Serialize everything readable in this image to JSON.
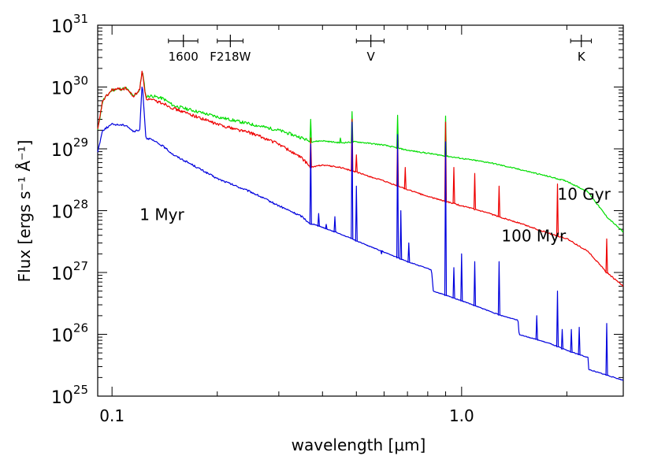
{
  "chart_data": {
    "type": "line",
    "title": "",
    "xlabel": "wavelength [μm]",
    "ylabel": "Flux [ergs s⁻¹ Å⁻¹]",
    "xscale": "log",
    "yscale": "log",
    "xlim": [
      0.091,
      2.9
    ],
    "ylim": [
      1e+25,
      1e+31
    ],
    "x_ticks": [
      {
        "value": 0.1,
        "label": "0.1"
      },
      {
        "value": 1.0,
        "label": "1.0"
      }
    ],
    "y_ticks": [
      {
        "value": 1e+25,
        "base": "10",
        "exp": "25"
      },
      {
        "value": 1e+26,
        "base": "10",
        "exp": "26"
      },
      {
        "value": 1e+27,
        "base": "10",
        "exp": "27"
      },
      {
        "value": 1e+28,
        "base": "10",
        "exp": "28"
      },
      {
        "value": 1e+29,
        "base": "10",
        "exp": "29"
      },
      {
        "value": 1e+30,
        "base": "10",
        "exp": "30"
      },
      {
        "value": 1e+31,
        "base": "10",
        "exp": "31"
      }
    ],
    "filter_bands": [
      {
        "label": "1600",
        "center": 0.16,
        "min": 0.145,
        "max": 0.176
      },
      {
        "label": "F218W",
        "center": 0.218,
        "min": 0.2,
        "max": 0.237
      },
      {
        "label": "V",
        "center": 0.55,
        "min": 0.5,
        "max": 0.6
      },
      {
        "label": "K",
        "center": 2.2,
        "min": 2.05,
        "max": 2.35
      }
    ],
    "series": [
      {
        "name": "10 Gyr",
        "color": "#00dd00",
        "label_pos": {
          "x": 1.88,
          "y": 1.5e+28
        },
        "points": [
          [
            0.091,
            2e+29
          ],
          [
            0.094,
            6e+29
          ],
          [
            0.1,
            9e+29
          ],
          [
            0.11,
            9.5e+29
          ],
          [
            0.115,
            7e+29
          ],
          [
            0.12,
            9e+29
          ],
          [
            0.122,
            1.9e+30
          ],
          [
            0.125,
            7e+29
          ],
          [
            0.13,
            7.2e+29
          ],
          [
            0.14,
            6.5e+29
          ],
          [
            0.15,
            5e+29
          ],
          [
            0.17,
            4.2e+29
          ],
          [
            0.2,
            3.3e+29
          ],
          [
            0.25,
            2.5e+29
          ],
          [
            0.3,
            2e+29
          ],
          [
            0.35,
            1.5e+29
          ],
          [
            0.37,
            1.3e+29
          ],
          [
            0.4,
            1.35e+29
          ],
          [
            0.45,
            1.25e+29
          ],
          [
            0.5,
            1.3e+29
          ],
          [
            0.6,
            1.15e+29
          ],
          [
            0.7,
            9.5e+28
          ],
          [
            0.8,
            8.5e+28
          ],
          [
            1.0,
            7e+28
          ],
          [
            1.2,
            6e+28
          ],
          [
            1.5,
            4.5e+28
          ],
          [
            1.8,
            3.5e+28
          ],
          [
            2.0,
            3e+28
          ],
          [
            2.3,
            2e+28
          ],
          [
            2.6,
            8e+27
          ],
          [
            2.9,
            4.5e+27
          ]
        ],
        "peaks": [
          [
            0.37,
            3e+29
          ],
          [
            0.45,
            1.5e+29
          ],
          [
            0.486,
            4e+29
          ],
          [
            0.656,
            3.5e+29
          ],
          [
            0.9,
            3.4e+29
          ]
        ]
      },
      {
        "name": "100 Myr",
        "color": "#ee0000",
        "label_pos": {
          "x": 1.3,
          "y": 3.2e+27
        },
        "points": [
          [
            0.091,
            2e+29
          ],
          [
            0.094,
            6e+29
          ],
          [
            0.1,
            9e+29
          ],
          [
            0.11,
            9.5e+29
          ],
          [
            0.115,
            7e+29
          ],
          [
            0.12,
            9e+29
          ],
          [
            0.122,
            1.9e+30
          ],
          [
            0.125,
            6.5e+29
          ],
          [
            0.14,
            5.5e+29
          ],
          [
            0.15,
            4.5e+29
          ],
          [
            0.17,
            3.5e+29
          ],
          [
            0.2,
            2.5e+29
          ],
          [
            0.25,
            1.8e+29
          ],
          [
            0.3,
            1.2e+29
          ],
          [
            0.35,
            7e+28
          ],
          [
            0.37,
            5e+28
          ],
          [
            0.4,
            5.5e+28
          ],
          [
            0.45,
            5e+28
          ],
          [
            0.5,
            4.2e+28
          ],
          [
            0.6,
            3e+28
          ],
          [
            0.7,
            2.2e+28
          ],
          [
            0.8,
            1.7e+28
          ],
          [
            1.0,
            1.2e+28
          ],
          [
            1.2,
            9e+27
          ],
          [
            1.5,
            6e+27
          ],
          [
            1.8,
            4.2e+27
          ],
          [
            2.0,
            3.5e+27
          ],
          [
            2.3,
            2.2e+27
          ],
          [
            2.6,
            1e+27
          ],
          [
            2.9,
            6e+26
          ]
        ],
        "peaks": [
          [
            0.37,
            1.5e+29
          ],
          [
            0.486,
            3e+29
          ],
          [
            0.5,
            8e+28
          ],
          [
            0.656,
            1.6e+29
          ],
          [
            0.69,
            5e+28
          ],
          [
            0.9,
            2.7e+29
          ],
          [
            0.95,
            5e+28
          ],
          [
            1.09,
            4e+28
          ],
          [
            1.28,
            2.5e+28
          ],
          [
            1.88,
            2.7e+28
          ],
          [
            2.6,
            3.5e+27
          ]
        ]
      },
      {
        "name": "1 Myr",
        "color": "#0000dd",
        "label_pos": {
          "x": 0.12,
          "y": 7e+27
        },
        "points": [
          [
            0.091,
            9e+28
          ],
          [
            0.094,
            2e+29
          ],
          [
            0.1,
            2.5e+29
          ],
          [
            0.11,
            2.4e+29
          ],
          [
            0.115,
            1.9e+29
          ],
          [
            0.12,
            2e+29
          ],
          [
            0.122,
            1.2e+30
          ],
          [
            0.125,
            1.5e+29
          ],
          [
            0.13,
            1.4e+29
          ],
          [
            0.14,
            1.1e+29
          ],
          [
            0.15,
            8e+28
          ],
          [
            0.17,
            5.5e+28
          ],
          [
            0.2,
            3.3e+28
          ],
          [
            0.25,
            2e+28
          ],
          [
            0.3,
            1.2e+28
          ],
          [
            0.35,
            8e+27
          ],
          [
            0.37,
            6e+27
          ],
          [
            0.38,
            6e+27
          ],
          [
            0.45,
            4.2e+27
          ],
          [
            0.55,
            2.6e+27
          ],
          [
            0.7,
            1.5e+27
          ],
          [
            0.82,
            1.1e+27
          ],
          [
            0.83,
            5e+26
          ],
          [
            1.0,
            3.5e+26
          ],
          [
            1.3,
            2e+26
          ],
          [
            1.45,
            1.7e+26
          ],
          [
            1.46,
            1e+26
          ],
          [
            1.8,
            7e+25
          ],
          [
            2.0,
            5.5e+25
          ],
          [
            2.3,
            4.2e+25
          ],
          [
            2.31,
            2.7e+25
          ],
          [
            2.9,
            1.8e+25
          ]
        ],
        "peaks": [
          [
            0.37,
            1.2e+29
          ],
          [
            0.39,
            9e+27
          ],
          [
            0.41,
            6e+27
          ],
          [
            0.434,
            8e+27
          ],
          [
            0.486,
            2.7e+29
          ],
          [
            0.5,
            2.5e+28
          ],
          [
            0.59,
            2e+27
          ],
          [
            0.656,
            1.7e+29
          ],
          [
            0.67,
            1e+28
          ],
          [
            0.706,
            3e+27
          ],
          [
            0.9,
            1.3e+29
          ],
          [
            0.95,
            1.2e+27
          ],
          [
            1.0,
            2e+27
          ],
          [
            1.09,
            1.5e+27
          ],
          [
            1.28,
            1.5e+27
          ],
          [
            1.64,
            2e+26
          ],
          [
            1.88,
            5e+26
          ],
          [
            1.94,
            1.2e+26
          ],
          [
            2.06,
            1.2e+26
          ],
          [
            2.17,
            1.3e+26
          ],
          [
            2.6,
            1.5e+26
          ]
        ]
      }
    ]
  }
}
